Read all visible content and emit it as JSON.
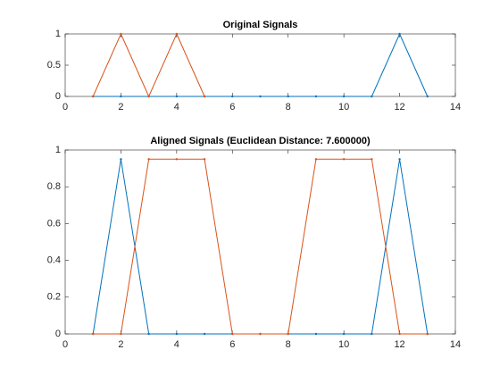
{
  "chart_data": [
    {
      "type": "line",
      "title": "Original Signals",
      "xlim": [
        0,
        14
      ],
      "xticks": [
        0,
        2,
        4,
        6,
        8,
        10,
        12,
        14
      ],
      "ylim": [
        0,
        1
      ],
      "yticks": [
        0,
        0.5,
        1
      ],
      "series": [
        {
          "color": "#0072bd",
          "x": [
            1,
            2,
            3,
            4,
            5,
            6,
            7,
            8,
            9,
            10,
            11,
            12,
            13
          ],
          "values": [
            0,
            0,
            0,
            0,
            0,
            0,
            0,
            0,
            0,
            0,
            0,
            1,
            0
          ]
        },
        {
          "color": "#d95319",
          "x": [
            1,
            2,
            3,
            4,
            5
          ],
          "values": [
            0,
            1,
            0,
            1,
            0
          ]
        }
      ]
    },
    {
      "type": "line",
      "title": "Aligned Signals (Euclidean Distance: 7.600000)",
      "xlim": [
        0,
        14
      ],
      "xticks": [
        0,
        2,
        4,
        6,
        8,
        10,
        12,
        14
      ],
      "ylim": [
        0,
        1
      ],
      "yticks": [
        0,
        0.2,
        0.4,
        0.6,
        0.8,
        1
      ],
      "series": [
        {
          "color": "#0072bd",
          "x": [
            1,
            2,
            3,
            4,
            5,
            6,
            7,
            8,
            9,
            10,
            11,
            12,
            13
          ],
          "values": [
            0,
            0.95,
            0,
            0,
            0,
            0,
            0,
            0,
            0,
            0,
            0,
            0.95,
            0
          ]
        },
        {
          "color": "#d95319",
          "x": [
            1,
            2,
            3,
            4,
            5,
            6,
            7,
            8,
            9,
            10,
            11,
            12,
            13
          ],
          "values": [
            0,
            0,
            0.95,
            0.95,
            0.95,
            0,
            0,
            0,
            0.95,
            0.95,
            0.95,
            0,
            0
          ]
        }
      ]
    }
  ]
}
